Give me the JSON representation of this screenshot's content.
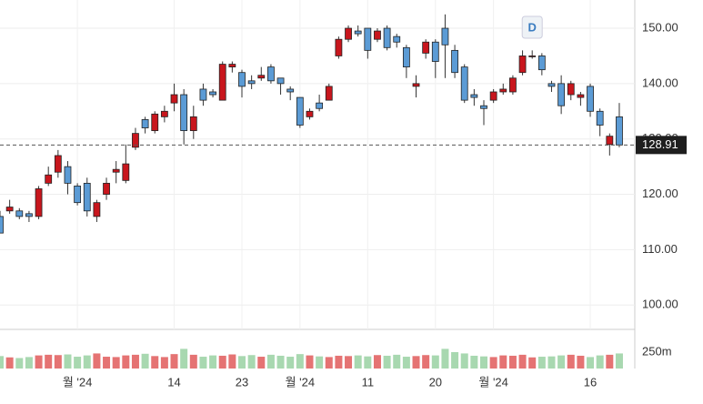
{
  "chart_data": {
    "type": "candlestick",
    "categories": [
      null,
      null,
      null,
      null,
      null,
      null,
      null,
      null,
      "월 '24",
      null,
      null,
      null,
      null,
      null,
      null,
      null,
      null,
      null,
      "14",
      null,
      null,
      null,
      null,
      null,
      null,
      "23",
      null,
      null,
      null,
      null,
      null,
      "월 '24",
      null,
      null,
      null,
      null,
      null,
      null,
      "11",
      null,
      null,
      null,
      null,
      null,
      null,
      "20",
      null,
      null,
      null,
      null,
      null,
      "월 '24",
      null,
      null,
      null,
      null,
      null,
      null,
      null,
      null,
      null,
      "16",
      null,
      null,
      null
    ],
    "open": [
      116,
      117,
      117,
      116.5,
      116,
      122,
      124,
      125,
      121.5,
      122,
      116,
      120,
      124,
      122.5,
      128.5,
      133.5,
      131.5,
      134,
      136.5,
      138,
      131.5,
      139,
      138.5,
      137,
      143,
      142,
      140.5,
      141,
      143,
      141,
      139,
      137.5,
      134,
      136.5,
      137,
      145,
      148,
      149.5,
      150,
      148,
      150,
      148.5,
      146.5,
      139.5,
      145.5,
      147.5,
      150,
      146,
      143,
      138,
      136,
      137,
      138.5,
      138.5,
      142,
      145,
      145,
      140,
      140,
      138,
      137.5,
      139.5,
      135,
      129,
      134
    ],
    "high": [
      117,
      119,
      117.5,
      117,
      121.5,
      125,
      128,
      126,
      122,
      123,
      119,
      123,
      126,
      129,
      132,
      134,
      135,
      136,
      140,
      139,
      136,
      140,
      139,
      144,
      144,
      142.5,
      141.5,
      143,
      143.5,
      141,
      139.5,
      137.5,
      135.5,
      138,
      140,
      148.5,
      150.5,
      150.5,
      150,
      150,
      150.5,
      149,
      147,
      141.5,
      148,
      148,
      152.5,
      147,
      143.5,
      139,
      137,
      139,
      140,
      141.5,
      146,
      146,
      145.5,
      140.5,
      141.5,
      140.5,
      138.5,
      140,
      135.5,
      131,
      136.5
    ],
    "low": [
      113,
      116.5,
      115.5,
      115,
      115.5,
      121.5,
      123,
      120,
      118,
      116,
      115,
      119,
      122,
      122,
      128,
      131,
      131,
      133,
      135,
      129,
      130,
      136,
      137.5,
      137,
      142,
      137.5,
      139,
      140.5,
      140,
      138,
      137,
      132,
      133.5,
      135,
      137,
      144.5,
      147.5,
      148.5,
      144.5,
      147.5,
      146,
      146.5,
      141,
      137.5,
      144.5,
      141,
      141,
      141,
      136.5,
      136,
      132.5,
      136.5,
      138,
      138,
      141.5,
      144.5,
      141.5,
      138.5,
      134.5,
      137,
      136,
      134,
      130.5,
      127,
      128.5
    ],
    "close": [
      113,
      117.7,
      116,
      116,
      121,
      123.5,
      127,
      122,
      118.5,
      117,
      118.5,
      122,
      124.5,
      125.5,
      131,
      132,
      134.5,
      135,
      138,
      131.5,
      134,
      137,
      138,
      143.5,
      143.5,
      139.5,
      140,
      141.5,
      140.5,
      140,
      138.5,
      132.5,
      135,
      135.5,
      139.5,
      148,
      150,
      149,
      146,
      149.5,
      146.5,
      147.5,
      143,
      140,
      147.5,
      144,
      147,
      142,
      137,
      137.5,
      135.5,
      138.5,
      139,
      141,
      145,
      145,
      142.5,
      139.5,
      136,
      140,
      138,
      135,
      132.5,
      130.5,
      128.91
    ],
    "volume": [
      190,
      170,
      160,
      175,
      200,
      210,
      205,
      215,
      180,
      200,
      230,
      180,
      175,
      200,
      210,
      225,
      190,
      175,
      220,
      300,
      210,
      180,
      200,
      195,
      215,
      190,
      205,
      180,
      210,
      195,
      180,
      220,
      200,
      185,
      175,
      195,
      190,
      200,
      185,
      205,
      195,
      210,
      180,
      190,
      205,
      200,
      300,
      250,
      230,
      195,
      185,
      175,
      200,
      195,
      210,
      170,
      180,
      185,
      200,
      210,
      195,
      175,
      200,
      210,
      230
    ],
    "up_color": "#c8161d",
    "down_color": "#5b9bd5",
    "volume_up_color": "#e57373",
    "volume_down_color": "#a8d8b0",
    "ylim": [
      95.6,
      155.1
    ],
    "yticks": [
      {
        "value": 100,
        "label": "100.00"
      },
      {
        "value": 110,
        "label": "110.00"
      },
      {
        "value": 120,
        "label": "120.00"
      },
      {
        "value": 130,
        "label": "130.00"
      },
      {
        "value": 140,
        "label": "140.00"
      },
      {
        "value": 150,
        "label": "150.00"
      }
    ],
    "last_price": 128.91,
    "volume_ylim": [
      0,
      300
    ],
    "volume_ticks": [
      {
        "value": 250,
        "label": "250m"
      }
    ],
    "marker": {
      "label": "D",
      "index": 55
    },
    "grid": true
  }
}
